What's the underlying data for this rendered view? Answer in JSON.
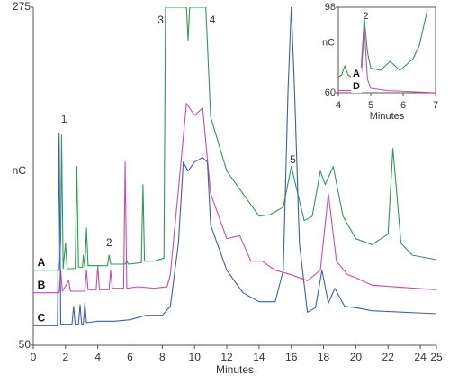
{
  "chart_data": [
    {
      "type": "line",
      "xlabel": "Minutes",
      "ylabel": "nC",
      "xlim": [
        0,
        25
      ],
      "ylim": [
        50,
        275
      ],
      "xticks": [
        0,
        2,
        4,
        6,
        8,
        10,
        12,
        14,
        16,
        18,
        20,
        22,
        24,
        25
      ],
      "yticks": [
        50,
        275
      ],
      "annotations": [
        {
          "text": "1",
          "x": 1.9,
          "y": 200
        },
        {
          "text": "2",
          "x": 4.7,
          "y": 118
        },
        {
          "text": "3",
          "x": 7.9,
          "y": 266
        },
        {
          "text": "4",
          "x": 11.1,
          "y": 266
        },
        {
          "text": "5",
          "x": 16.1,
          "y": 173
        }
      ],
      "series": [
        {
          "name": "A",
          "color": "#2e9a55",
          "x": [
            0,
            1.6,
            1.7,
            1.75,
            1.85,
            2.0,
            2.1,
            2.6,
            2.7,
            2.8,
            3.05,
            3.1,
            3.2,
            3.3,
            3.4,
            4.6,
            4.7,
            4.8,
            5.7,
            5.8,
            5.9,
            6.7,
            6.8,
            6.9,
            7.5,
            8.1,
            8.2,
            9.5,
            9.6,
            9.7,
            10.7,
            11,
            12,
            13,
            14,
            14.7,
            15.5,
            16,
            16.8,
            17.3,
            17.8,
            18.1,
            18.6,
            19.2,
            20,
            21,
            22,
            22.3,
            22.8,
            23.5,
            25
          ],
          "values": [
            100,
            100,
            120,
            190,
            101,
            118,
            101,
            101,
            169,
            102,
            102,
            110,
            102,
            128,
            103,
            103,
            110,
            104,
            104,
            106,
            104,
            105,
            157,
            106,
            106,
            108,
            275,
            275,
            253,
            275,
            275,
            202,
            166,
            151,
            136,
            137,
            142,
            169,
            133,
            136,
            166,
            157,
            169,
            136,
            121,
            117,
            124,
            181,
            118,
            110,
            107
          ]
        },
        {
          "name": "B",
          "color": "#c94fa5",
          "x": [
            0,
            1.6,
            1.7,
            1.8,
            2.2,
            2.3,
            3.2,
            3.3,
            3.4,
            3.9,
            4.0,
            4.1,
            4.7,
            4.8,
            4.9,
            5.6,
            5.7,
            5.8,
            6.5,
            7.5,
            8.3,
            8.5,
            9.0,
            9.5,
            10,
            10.5,
            11,
            12,
            12.8,
            13.5,
            14.2,
            15,
            16,
            17,
            17.8,
            18.3,
            18.8,
            19.5,
            20,
            21,
            25
          ],
          "values": [
            85,
            85,
            100,
            86,
            93,
            86,
            86,
            100,
            87,
            87,
            103,
            87,
            87,
            100,
            88,
            88,
            172,
            88,
            89,
            88,
            89,
            97,
            154,
            211,
            203,
            208,
            151,
            121,
            123,
            106,
            106,
            100,
            97,
            93,
            100,
            151,
            106,
            97,
            95,
            90,
            87
          ]
        },
        {
          "name": "C",
          "color": "#3d5db3",
          "x": [
            0,
            1.5,
            1.6,
            1.7,
            2.4,
            2.5,
            2.6,
            2.8,
            2.9,
            3.0,
            3.1,
            3.2,
            3.3,
            4,
            5,
            6,
            7,
            8,
            8.5,
            9.0,
            9.3,
            9.6,
            10,
            10.5,
            10.8,
            11,
            12,
            13,
            14,
            15,
            15.5,
            15.8,
            16,
            16.2,
            16.5,
            17,
            17.5,
            17.9,
            18.3,
            18.7,
            19.3,
            20,
            21,
            25
          ],
          "values": [
            63,
            63,
            191,
            64,
            64,
            76,
            64,
            64,
            77,
            64,
            64,
            78,
            65,
            66,
            66,
            67,
            70,
            70,
            76,
            118,
            172,
            166,
            172,
            175,
            172,
            130,
            100,
            85,
            79,
            79,
            100,
            220,
            275,
            220,
            118,
            72,
            75,
            100,
            78,
            88,
            76,
            75,
            73,
            71
          ]
        }
      ]
    },
    {
      "type": "line",
      "xlabel": "Minutes",
      "ylabel": "nC",
      "xlim": [
        4,
        7
      ],
      "ylim": [
        60,
        98
      ],
      "xticks": [
        4,
        5,
        6,
        7
      ],
      "yticks": [
        60,
        98
      ],
      "annotations": [
        {
          "text": "2",
          "x": 4.85,
          "y": 94
        }
      ],
      "series": [
        {
          "name": "A",
          "color": "#2e9a55",
          "x": [
            4.0,
            4.1,
            4.2,
            4.3,
            4.4,
            4.6,
            4.7,
            4.8,
            4.9,
            5.0,
            5.3,
            5.6,
            5.9,
            6.3,
            6.5,
            6.75
          ],
          "values": [
            67,
            68,
            72,
            68,
            67,
            67,
            70,
            93,
            78,
            71,
            70,
            74,
            70,
            75,
            81,
            97
          ]
        },
        {
          "name": "D",
          "color": "#c94fa5",
          "x": [
            4.0,
            4.6,
            4.7,
            4.8,
            4.9,
            5.0,
            5.5,
            7
          ],
          "values": [
            61,
            61,
            66,
            89,
            66,
            62,
            61,
            60
          ]
        }
      ]
    }
  ]
}
